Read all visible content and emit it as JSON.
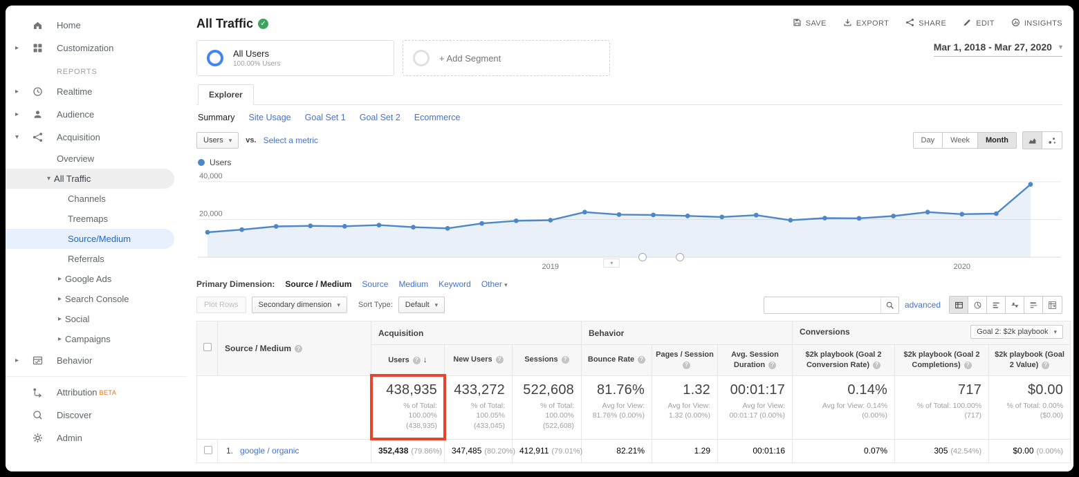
{
  "colors": {
    "link_blue": "#4272d7",
    "selected_blue": "#1967d2",
    "chart_line": "#4d87c7",
    "highlight_red": "#e8432d",
    "beta_orange": "#e8710a",
    "verified_green": "#3ba55d"
  },
  "icons": {
    "caret_down": "▾",
    "caret_right": "▸",
    "sort_desc": "↓",
    "question": "?",
    "check": "✓"
  },
  "sidebar": {
    "home": "Home",
    "customization": "Customization",
    "reports": "REPORTS",
    "realtime": "Realtime",
    "audience": "Audience",
    "acquisition": "Acquisition",
    "overview": "Overview",
    "all_traffic": "All Traffic",
    "channels": "Channels",
    "treemaps": "Treemaps",
    "source_medium": "Source/Medium",
    "referrals": "Referrals",
    "google_ads": "Google Ads",
    "search_console": "Search Console",
    "social": "Social",
    "campaigns": "Campaigns",
    "behavior": "Behavior",
    "attribution": "Attribution",
    "attribution_badge": "BETA",
    "discover": "Discover",
    "admin": "Admin"
  },
  "header": {
    "title": "All Traffic",
    "date_range": "Mar 1, 2018 - Mar 27, 2020",
    "actions": [
      {
        "label": "SAVE"
      },
      {
        "label": "EXPORT"
      },
      {
        "label": "SHARE"
      },
      {
        "label": "EDIT"
      },
      {
        "label": "INSIGHTS"
      }
    ]
  },
  "segments": {
    "all_users_title": "All Users",
    "all_users_sub": "100.00% Users",
    "add_segment": "+ Add Segment"
  },
  "explorer_tab": "Explorer",
  "report_tabs": {
    "summary": "Summary",
    "site_usage": "Site Usage",
    "goal_set_1": "Goal Set 1",
    "goal_set_2": "Goal Set 2",
    "ecommerce": "Ecommerce"
  },
  "metric_controls": {
    "metric": "Users",
    "vs": "vs.",
    "select_metric": "Select a metric",
    "day": "Day",
    "week": "Week",
    "month": "Month"
  },
  "chart_data": {
    "type": "line",
    "series": [
      {
        "name": "Users",
        "values": [
          13200,
          14600,
          16300,
          16600,
          16400,
          17000,
          15900,
          15300,
          17900,
          19300,
          19600,
          23900,
          22600,
          22400,
          21900,
          21300,
          22300,
          19600,
          20700,
          20600,
          21800,
          23900,
          22800,
          23100,
          38600
        ]
      }
    ],
    "x_interval": "month",
    "x_range": "Mar 1, 2018 - Mar 27, 2020",
    "x_tick_labels": [
      "2019",
      "2020"
    ],
    "x_tick_positions": [
      10,
      22
    ],
    "ylim": [
      0,
      44000
    ],
    "yticks": [
      20000,
      40000
    ],
    "ytick_labels": [
      "20,000",
      "40,000"
    ],
    "line_color": "#4d87c7",
    "fill_color": "rgba(77,135,199,0.12)",
    "grid": true,
    "legend_position": "top-left"
  },
  "dimension_bar": {
    "label": "Primary Dimension:",
    "active": "Source / Medium",
    "links": [
      "Source",
      "Medium",
      "Keyword"
    ],
    "other": "Other"
  },
  "table_toolbar": {
    "plot_rows": "Plot Rows",
    "secondary_dimension": "Secondary dimension",
    "sort_type_label": "Sort Type:",
    "sort_type": "Default",
    "advanced": "advanced"
  },
  "table": {
    "row_dimension": "Source / Medium",
    "groups": {
      "acquisition": "Acquisition",
      "behavior": "Behavior",
      "conversions": "Conversions",
      "goal_selector": "Goal 2: $2k playbook"
    },
    "metrics": [
      "Users",
      "New Users",
      "Sessions",
      "Bounce Rate",
      "Pages / Session",
      "Avg. Session Duration",
      "$2k playbook (Goal 2 Conversion Rate)",
      "$2k playbook (Goal 2 Completions)",
      "$2k playbook (Goal 2 Value)"
    ],
    "totals": [
      {
        "value": "438,935",
        "sub": "% of Total: 100.00% (438,935)"
      },
      {
        "value": "433,272",
        "sub": "% of Total: 100.05% (433,045)"
      },
      {
        "value": "522,608",
        "sub": "% of Total: 100.00% (522,608)"
      },
      {
        "value": "81.76%",
        "sub": "Avg for View: 81.76% (0.00%)"
      },
      {
        "value": "1.32",
        "sub": "Avg for View: 1.32 (0.00%)"
      },
      {
        "value": "00:01:17",
        "sub": "Avg for View: 00:01:17 (0.00%)"
      },
      {
        "value": "0.14%",
        "sub": "Avg for View: 0.14% (0.00%)"
      },
      {
        "value": "717",
        "sub": "% of Total: 100.00% (717)"
      },
      {
        "value": "$0.00",
        "sub": "% of Total: 0.00% ($0.00)"
      }
    ],
    "rows": [
      {
        "rank": "1.",
        "source": "google / organic",
        "users": "352,438",
        "users_pct": "(79.86%)",
        "new_users": "347,485",
        "new_users_pct": "(80.20%)",
        "sessions": "412,911",
        "sessions_pct": "(79.01%)",
        "bounce_rate": "82.21%",
        "pages_session": "1.29",
        "avg_duration": "00:01:16",
        "conv_rate": "0.07%",
        "completions": "305",
        "completions_pct": "(42.54%)",
        "goal_value": "$0.00",
        "goal_value_pct": "(0.00%)"
      }
    ]
  }
}
